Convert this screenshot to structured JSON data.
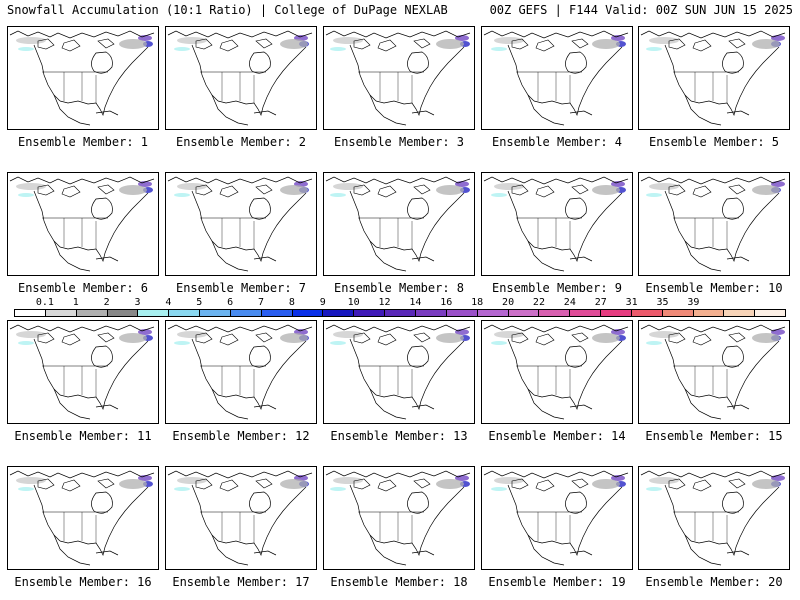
{
  "header": {
    "left": "Snowfall Accumulation (10:1 Ratio) | College of DuPage NEXLAB",
    "right": "00Z GEFS | F144 Valid: 00Z SUN JUN 15 2025"
  },
  "members": [
    {
      "label": "Ensemble Member: 1"
    },
    {
      "label": "Ensemble Member: 2"
    },
    {
      "label": "Ensemble Member: 3"
    },
    {
      "label": "Ensemble Member: 4"
    },
    {
      "label": "Ensemble Member: 5"
    },
    {
      "label": "Ensemble Member: 6"
    },
    {
      "label": "Ensemble Member: 7"
    },
    {
      "label": "Ensemble Member: 8"
    },
    {
      "label": "Ensemble Member: 9"
    },
    {
      "label": "Ensemble Member: 10"
    },
    {
      "label": "Ensemble Member: 11"
    },
    {
      "label": "Ensemble Member: 12"
    },
    {
      "label": "Ensemble Member: 13"
    },
    {
      "label": "Ensemble Member: 14"
    },
    {
      "label": "Ensemble Member: 15"
    },
    {
      "label": "Ensemble Member: 16"
    },
    {
      "label": "Ensemble Member: 17"
    },
    {
      "label": "Ensemble Member: 18"
    },
    {
      "label": "Ensemble Member: 19"
    },
    {
      "label": "Ensemble Member: 20"
    }
  ],
  "colorbar": {
    "labels": [
      "0.1",
      "1",
      "2",
      "3",
      "4",
      "5",
      "6",
      "7",
      "8",
      "9",
      "10",
      "12",
      "14",
      "16",
      "18",
      "20",
      "22",
      "24",
      "27",
      "31",
      "35",
      "39"
    ],
    "colors": [
      "#ffffff",
      "#d8d8d8",
      "#b0b0b0",
      "#888888",
      "#a8f0f0",
      "#8ad8f0",
      "#6cb4f0",
      "#4a8cf0",
      "#2a5ef0",
      "#0a30e8",
      "#1818c0",
      "#401ab8",
      "#5a28b8",
      "#7a3cc0",
      "#9a50c8",
      "#b466d0",
      "#cc70c8",
      "#d860b0",
      "#e04c98",
      "#e63c80",
      "#ec5a6c",
      "#f08a78",
      "#f4b090",
      "#f8d4b8",
      "#fdf0e6"
    ]
  }
}
